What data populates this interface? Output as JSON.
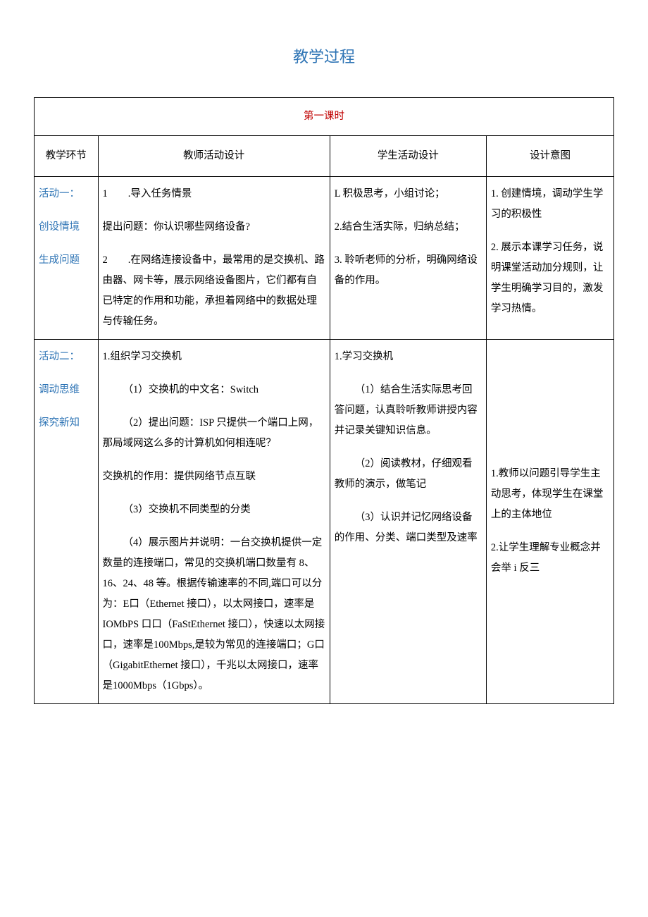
{
  "title": "教学过程",
  "table": {
    "caption": "第一课时",
    "headers": {
      "col1": "教学环节",
      "col2": "教师活动设计",
      "col3": "学生活动设计",
      "col4": "设计意图"
    },
    "rows": [
      {
        "phase": {
          "line1": "活动一：",
          "line2": "创设情境",
          "line3": "生成问题"
        },
        "teacher": {
          "p1": "1　　.导入任务情景",
          "p2": "提出问题：你认识哪些网络设备?",
          "p3": "2　　.在网络连接设备中，最常用的是交换机、路由器、网卡等，展示网络设备图片，它们都有自已特定的作用和功能，承担着网络中的数据处理与传输任务。"
        },
        "student": {
          "p1": "L 积极思考，小组讨论；",
          "p2": "2.结合生活实际，归纳总结；",
          "p3": "3. 聆听老师的分析，明确网络设备的作用。"
        },
        "intent": {
          "p1": "1. 创建情境，调动学生学习的积极性",
          "p2": "2. 展示本课学习任务，说明课堂活动加分规则，让学生明确学习目的，激发学习热情。"
        }
      },
      {
        "phase": {
          "line1": "活动二：",
          "line2": "调动思维",
          "line3": "探究新知"
        },
        "teacher": {
          "p1": "1.组织学习交换机",
          "p2": "（1）交换机的中文名：Switch",
          "p3": "（2）提出问题：ISP 只提供一个端口上网，那局域网这么多的计算机如何相连呢？",
          "p4": "交换机的作用：提供网络节点互联",
          "p5": "（3）交换机不同类型的分类",
          "p6": "（4）展示图片并说明：一台交换机提供一定数量的连接端口，常见的交换机端口数量有 8、16、24、48 等。根据传输速率的不同,端口可以分为：E口（Ethernet 接口），以太网接口，速率是 IOMbPS 口口（FaStEthernet 接口），快速以太网接口，速率是100Mbps,是较为常见的连接端口；G口（GigabitEthernet 接口），千兆以太网接口，速率是1000Mbps（1Gbps）。"
        },
        "student": {
          "p1": "1.学习交换机",
          "p2": "（1）结合生活实际思考回答问题，认真聆听教师讲授内容并记录关键知识信息。",
          "p3": "（2）阅读教材，仔细观看教师的演示，做笔记",
          "p4": "（3）认识并记忆网络设备的作用、分类、端口类型及速率"
        },
        "intent": {
          "p1": "1.教师以问题引导学生主动思考，体现学生在课堂上的主体地位",
          "p2": "2.让学生理解专业概念并会举 i 反三"
        }
      }
    ]
  }
}
